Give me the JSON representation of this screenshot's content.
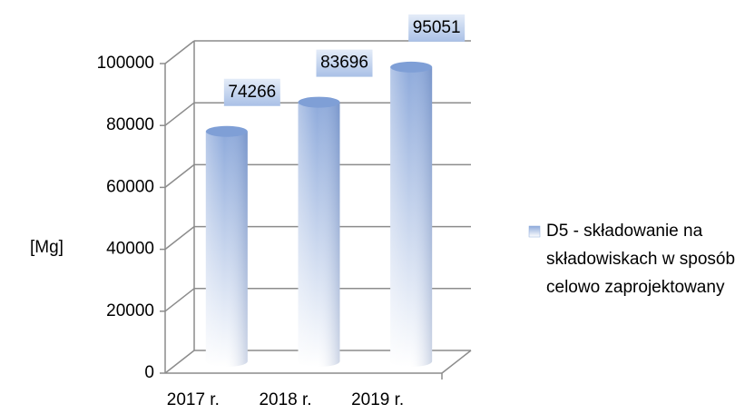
{
  "chart_data": {
    "type": "bar",
    "categories": [
      "2017 r.",
      "2018 r.",
      "2019 r."
    ],
    "series": [
      {
        "name": "D5 - składowanie na składowiskach w sposób celowo zaprojektowany",
        "color": "#8eaadb",
        "values": [
          74266,
          83696,
          95051
        ]
      }
    ],
    "y_label": "[Mg]",
    "ylim": [
      0,
      100000
    ],
    "yticks": [
      0,
      20000,
      40000,
      60000,
      80000,
      100000
    ],
    "grid": true,
    "legend": "right"
  }
}
